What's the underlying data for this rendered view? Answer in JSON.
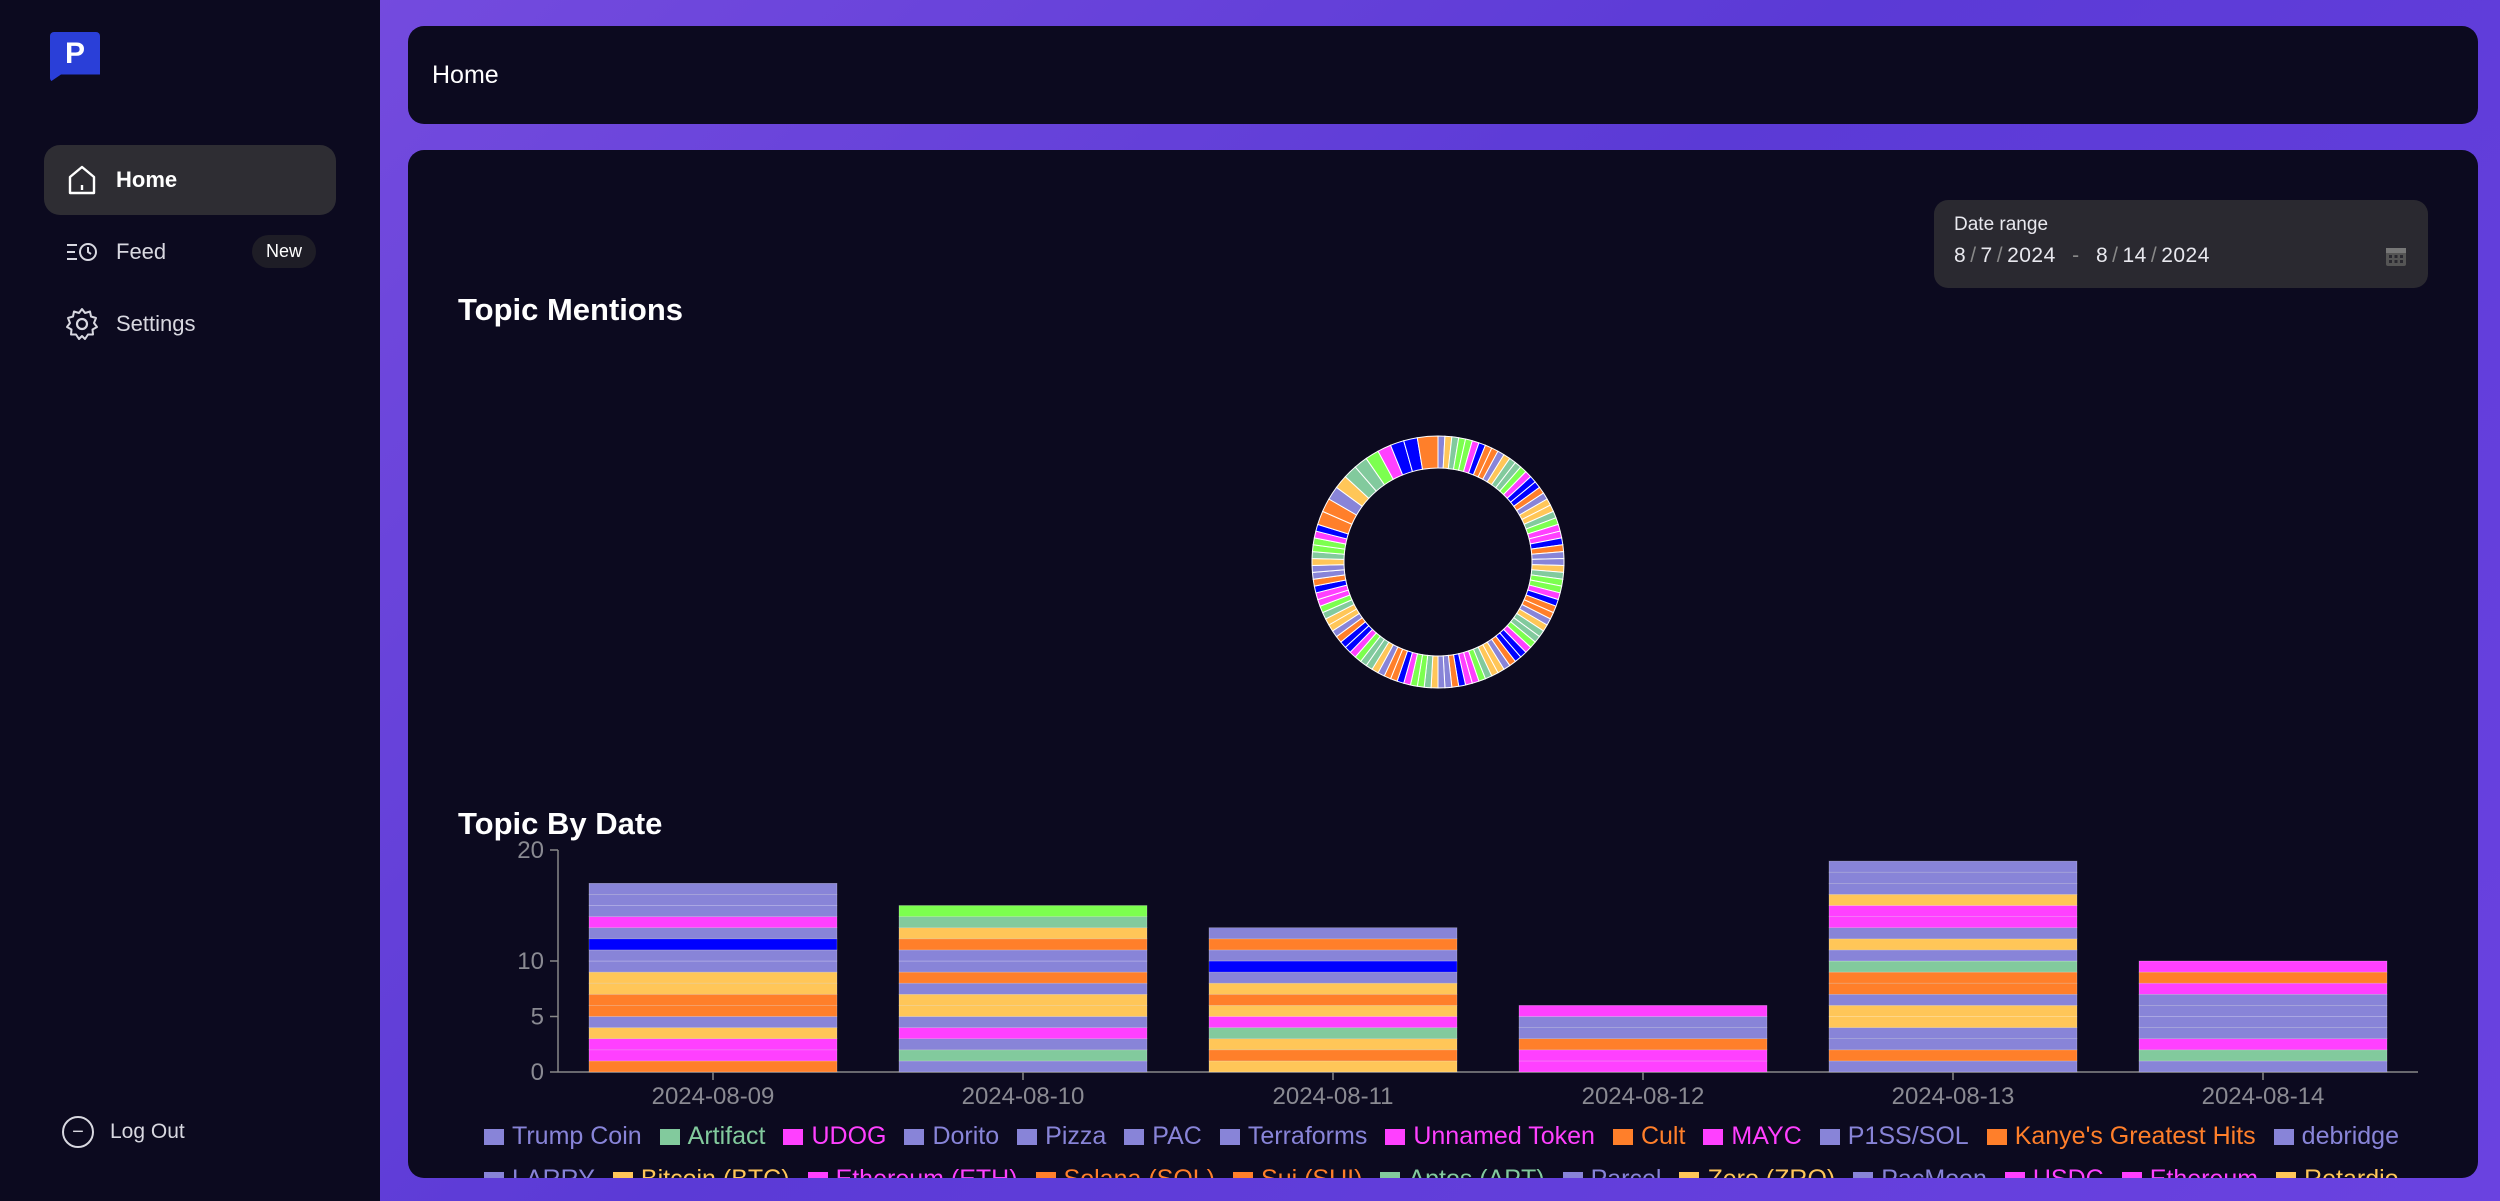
{
  "sidebar": {
    "logo_letter": "P",
    "items": [
      {
        "label": "Home",
        "icon": "home-icon",
        "active": true
      },
      {
        "label": "Feed",
        "icon": "feed-icon",
        "badge": "New"
      },
      {
        "label": "Settings",
        "icon": "gear-icon"
      }
    ],
    "logout_label": "Log Out"
  },
  "header": {
    "title": "Home"
  },
  "date_range": {
    "label": "Date range",
    "start": {
      "month": "8",
      "day": "7",
      "year": "2024"
    },
    "end": {
      "month": "8",
      "day": "14",
      "year": "2024"
    },
    "separator": "-"
  },
  "sections": {
    "mentions_title": "Topic Mentions",
    "by_date_title": "Topic By Date"
  },
  "colors": {
    "accent": "#5b3ad6",
    "panel": "#0c0a1f",
    "palette": [
      "#8884d8",
      "#82ca9d",
      "#ff40ff",
      "#ff7f2a",
      "#ffc658",
      "#7cff4f",
      "#0000ff"
    ]
  },
  "chart_data": [
    {
      "type": "pie",
      "title": "Topic Mentions",
      "donut": true,
      "values": [
        1,
        1,
        1,
        1,
        1,
        1,
        1,
        1,
        1,
        1,
        1,
        1,
        1,
        1,
        1,
        1,
        1,
        1,
        1,
        1,
        1,
        1,
        1,
        1,
        1,
        1,
        1,
        1,
        1,
        1,
        1,
        1,
        1,
        1,
        1,
        1,
        1,
        1,
        1,
        1,
        1,
        1,
        1,
        1,
        1,
        1,
        1,
        1,
        1,
        1,
        1,
        1,
        1,
        1,
        1,
        1,
        1,
        1,
        1,
        1,
        1,
        1,
        1,
        1,
        1,
        1,
        1,
        1,
        1,
        1,
        1,
        1,
        1,
        1,
        1,
        1,
        1,
        1,
        1,
        1,
        1,
        1,
        1,
        1,
        1,
        1,
        1,
        1,
        1,
        1,
        1,
        2,
        2,
        2,
        2,
        2,
        2,
        2,
        2,
        2,
        2,
        3
      ]
    },
    {
      "type": "bar",
      "stacked": true,
      "title": "Topic By Date",
      "categories": [
        "2024-08-09",
        "2024-08-10",
        "2024-08-11",
        "2024-08-12",
        "2024-08-13",
        "2024-08-14"
      ],
      "totals": [
        17,
        15,
        13,
        6,
        19,
        10
      ],
      "yticks": [
        0,
        5,
        10,
        20
      ],
      "ylim": [
        0,
        20
      ],
      "legend_position": "bottom",
      "legend": [
        {
          "name": "Trump Coin",
          "color": "#8884d8"
        },
        {
          "name": "Artifact",
          "color": "#82ca9d"
        },
        {
          "name": "UDOG",
          "color": "#ff40ff"
        },
        {
          "name": "Dorito",
          "color": "#8884d8"
        },
        {
          "name": "Pizza",
          "color": "#8884d8"
        },
        {
          "name": "PAC",
          "color": "#8884d8"
        },
        {
          "name": "Terraforms",
          "color": "#8884d8"
        },
        {
          "name": "Unnamed Token",
          "color": "#ff40ff"
        },
        {
          "name": "Cult",
          "color": "#ff7f2a"
        },
        {
          "name": "MAYC",
          "color": "#ff40ff"
        },
        {
          "name": "P1SS/SOL",
          "color": "#8884d8"
        },
        {
          "name": "Kanye's Greatest Hits",
          "color": "#ff7f2a"
        },
        {
          "name": "debridge",
          "color": "#8884d8"
        },
        {
          "name": "LARRY",
          "color": "#8884d8"
        },
        {
          "name": "Bitcoin (BTC)",
          "color": "#ffc658"
        },
        {
          "name": "Ethereum (ETH)",
          "color": "#ff40ff"
        },
        {
          "name": "Solana (SOL)",
          "color": "#ff7f2a"
        },
        {
          "name": "Sui (SUI)",
          "color": "#ff7f2a"
        },
        {
          "name": "Aptos (APT)",
          "color": "#82ca9d"
        },
        {
          "name": "Parcel",
          "color": "#8884d8"
        },
        {
          "name": "Zero (ZRO)",
          "color": "#ffc658"
        },
        {
          "name": "PacMoon",
          "color": "#8884d8"
        },
        {
          "name": "USDC",
          "color": "#ff40ff"
        },
        {
          "name": "Ethereum",
          "color": "#ff40ff"
        },
        {
          "name": "Retardio",
          "color": "#ffc658"
        }
      ],
      "segments": [
        [
          "#ff7f2a",
          "#ff40ff",
          "#ff40ff",
          "#ffc658",
          "#8884d8",
          "#ff7f2a",
          "#ff7f2a",
          "#ffc658",
          "#ffc658",
          "#8884d8",
          "#8884d8",
          "#0000ff",
          "#8884d8",
          "#ff40ff",
          "#8884d8",
          "#8884d8",
          "#8884d8"
        ],
        [
          "#8884d8",
          "#82ca9d",
          "#8884d8",
          "#ff40ff",
          "#8884d8",
          "#ffc658",
          "#ffc658",
          "#8884d8",
          "#ff7f2a",
          "#8884d8",
          "#8884d8",
          "#ff7f2a",
          "#ffc658",
          "#82ca9d",
          "#7cff4f"
        ],
        [
          "#ffc658",
          "#ff7f2a",
          "#ffc658",
          "#82ca9d",
          "#ff40ff",
          "#ffc658",
          "#ff7f2a",
          "#ffc658",
          "#8884d8",
          "#0000ff",
          "#8884d8",
          "#ff7f2a",
          "#8884d8"
        ],
        [
          "#ff40ff",
          "#ff40ff",
          "#ff7f2a",
          "#8884d8",
          "#8884d8",
          "#ff40ff"
        ],
        [
          "#8884d8",
          "#ff7f2a",
          "#8884d8",
          "#8884d8",
          "#ffc658",
          "#ffc658",
          "#8884d8",
          "#ff7f2a",
          "#ff7f2a",
          "#82ca9d",
          "#8884d8",
          "#ffc658",
          "#8884d8",
          "#ff40ff",
          "#ff40ff",
          "#ffc658",
          "#8884d8",
          "#8884d8",
          "#8884d8"
        ],
        [
          "#8884d8",
          "#82ca9d",
          "#ff40ff",
          "#8884d8",
          "#8884d8",
          "#8884d8",
          "#8884d8",
          "#ff40ff",
          "#ff7f2a",
          "#ff40ff"
        ]
      ]
    }
  ]
}
